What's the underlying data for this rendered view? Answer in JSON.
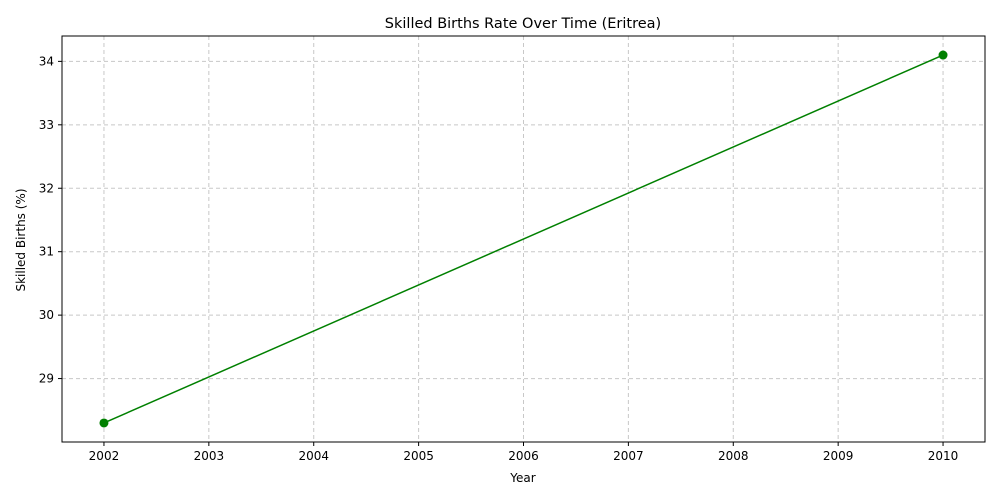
{
  "chart_data": {
    "type": "line",
    "title": "Skilled Births Rate Over Time (Eritrea)",
    "xlabel": "Year",
    "ylabel": "Skilled Births (%)",
    "xlim": [
      2001.6,
      2010.4
    ],
    "ylim": [
      28.0,
      34.4
    ],
    "x_ticks": [
      2002,
      2003,
      2004,
      2005,
      2006,
      2007,
      2008,
      2009,
      2010
    ],
    "y_ticks": [
      29,
      30,
      31,
      32,
      33,
      34
    ],
    "grid": true,
    "legend": "none",
    "series": [
      {
        "x": [
          2002,
          2010
        ],
        "y": [
          28.3,
          34.1
        ],
        "color": "#008000",
        "marker": "circle"
      }
    ]
  },
  "colors": {
    "grid": "#c8c8c8",
    "axis": "#000000"
  }
}
